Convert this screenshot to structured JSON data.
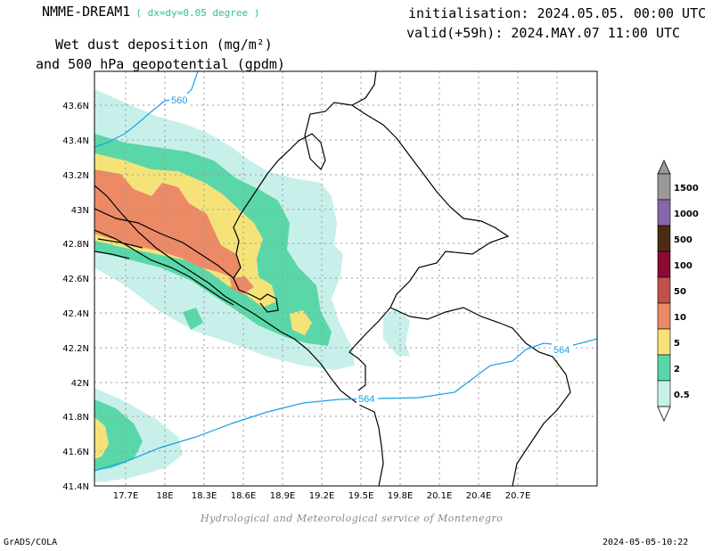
{
  "header": {
    "model": "NMME-DREAM1",
    "resolution": "( dx=dy=0.05 degree )",
    "field_line1": "Wet dust deposition (mg/m²)",
    "field_line2": "and 500 hPa geopotential (gpdm)",
    "init": "initialisation: 2024.05.05. 00:00 UTC",
    "valid": "valid(+59h): 2024.MAY.07 11:00 UTC"
  },
  "map": {
    "lat_ticks": [
      "43.6N",
      "43.4N",
      "43.2N",
      "43N",
      "42.8N",
      "42.6N",
      "42.4N",
      "42.2N",
      "42N",
      "41.8N",
      "41.6N",
      "41.4N"
    ],
    "lon_ticks": [
      "17.7E",
      "18E",
      "18.3E",
      "18.6E",
      "18.9E",
      "19.2E",
      "19.5E",
      "19.8E",
      "20.1E",
      "20.4E",
      "20.7E"
    ],
    "contour_labels": [
      "560",
      "564",
      "564"
    ],
    "contour_color": "#1aa0e6"
  },
  "legend": {
    "levels": [
      "0.5",
      "2",
      "5",
      "10",
      "50",
      "100",
      "500",
      "1000",
      "1500"
    ],
    "colors": [
      "#c8f0ea",
      "#5ad7a8",
      "#f5e37a",
      "#ec8a66",
      "#c0504a",
      "#8c0a32",
      "#4a2c14",
      "#8866aa",
      "#999999"
    ]
  },
  "footer": {
    "credit": "Hydrological and Meteorological service of Montenegro",
    "software": "GrADS/COLA",
    "timestamp": "2024-05-05-10:22"
  }
}
